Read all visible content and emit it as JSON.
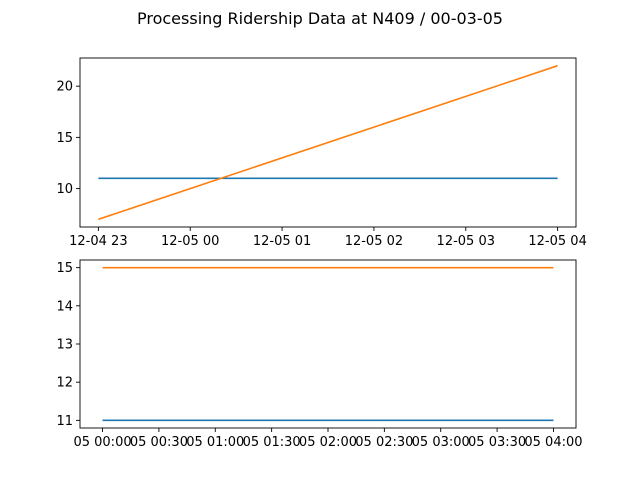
{
  "chart_data": {
    "title": "Processing Ridership Data at N409 / 00-03-05",
    "subplots": [
      {
        "type": "line",
        "x_type": "datetime",
        "xlim": [
          "2021-12-04 22:48",
          "2021-12-05 04:12"
        ],
        "ylim": [
          6.25,
          22.75
        ],
        "xticks": [
          "2021-12-04 23:00",
          "2021-12-05 00:00",
          "2021-12-05 01:00",
          "2021-12-05 02:00",
          "2021-12-05 03:00",
          "2021-12-05 04:00"
        ],
        "xtick_labels": [
          "12-04 23",
          "12-05 00",
          "12-05 01",
          "12-05 02",
          "12-05 03",
          "12-05 04"
        ],
        "yticks": [
          10,
          15,
          20
        ],
        "ytick_labels": [
          "10",
          "15",
          "20"
        ],
        "grid": false,
        "series": [
          {
            "color": "#1f77b4",
            "x": [
              "2021-12-04 23:00",
              "2021-12-05 04:00"
            ],
            "values": [
              11,
              11
            ]
          },
          {
            "color": "#ff7f0e",
            "x": [
              "2021-12-04 23:00",
              "2021-12-05 04:00"
            ],
            "values": [
              7,
              22
            ]
          }
        ]
      },
      {
        "type": "line",
        "x_type": "datetime",
        "xlim": [
          "2021-12-04 23:48",
          "2021-12-05 04:12"
        ],
        "ylim": [
          10.8,
          15.2
        ],
        "xticks": [
          "2021-12-05 00:00",
          "2021-12-05 00:30",
          "2021-12-05 01:00",
          "2021-12-05 01:30",
          "2021-12-05 02:00",
          "2021-12-05 02:30",
          "2021-12-05 03:00",
          "2021-12-05 03:30",
          "2021-12-05 04:00"
        ],
        "xtick_labels": [
          "05 00:00",
          "05 00:30",
          "05 01:00",
          "05 01:30",
          "05 02:00",
          "05 02:30",
          "05 03:00",
          "05 03:30",
          "05 04:00"
        ],
        "yticks": [
          11,
          12,
          13,
          14,
          15
        ],
        "ytick_labels": [
          "11",
          "12",
          "13",
          "14",
          "15"
        ],
        "grid": false,
        "series": [
          {
            "color": "#1f77b4",
            "x": [
              "2021-12-05 00:00",
              "2021-12-05 04:00"
            ],
            "values": [
              11,
              11
            ]
          },
          {
            "color": "#ff7f0e",
            "x": [
              "2021-12-05 00:00",
              "2021-12-05 04:00"
            ],
            "values": [
              15,
              15
            ]
          }
        ]
      }
    ]
  }
}
